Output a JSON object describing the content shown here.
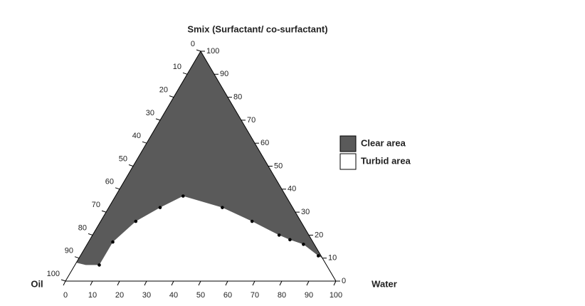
{
  "chart_data": {
    "type": "ternary",
    "title": "Smix (Surfactant/ co-surfactant)",
    "left_label": "Oil",
    "right_label": "Water",
    "water_ticks": [
      0,
      10,
      20,
      30,
      40,
      50,
      60,
      70,
      80,
      90,
      100
    ],
    "oil_ticks": [
      0,
      10,
      20,
      30,
      40,
      50,
      60,
      70,
      80,
      90,
      100
    ],
    "smix_ticks": [
      0,
      10,
      20,
      30,
      40,
      50,
      60,
      70,
      80,
      90,
      100
    ],
    "clear_area": {
      "name": "Clear area",
      "color": "#5a5a5a",
      "water": [
        0,
        0,
        4,
        9,
        9,
        13,
        19,
        25,
        42,
        56,
        69,
        74,
        80,
        88,
        90
      ],
      "smix": [
        100,
        8,
        7,
        7,
        17,
        26,
        32,
        37,
        32,
        26,
        20,
        18,
        16,
        11,
        10
      ],
      "oil": [
        0,
        92,
        89,
        84,
        74,
        61,
        49,
        38,
        26,
        18,
        11,
        8,
        4,
        1,
        0
      ]
    },
    "turbid_area": {
      "name": "Turbid area",
      "color": "#ffffff"
    },
    "points": {
      "color": "#000000",
      "water": [
        9,
        9,
        13,
        19,
        25,
        42,
        56,
        69,
        74,
        80,
        88
      ],
      "smix": [
        7,
        17,
        26,
        32,
        37,
        32,
        26,
        20,
        18,
        16,
        11
      ],
      "oil": [
        84,
        74,
        61,
        49,
        38,
        26,
        18,
        11,
        8,
        4,
        1
      ]
    }
  }
}
